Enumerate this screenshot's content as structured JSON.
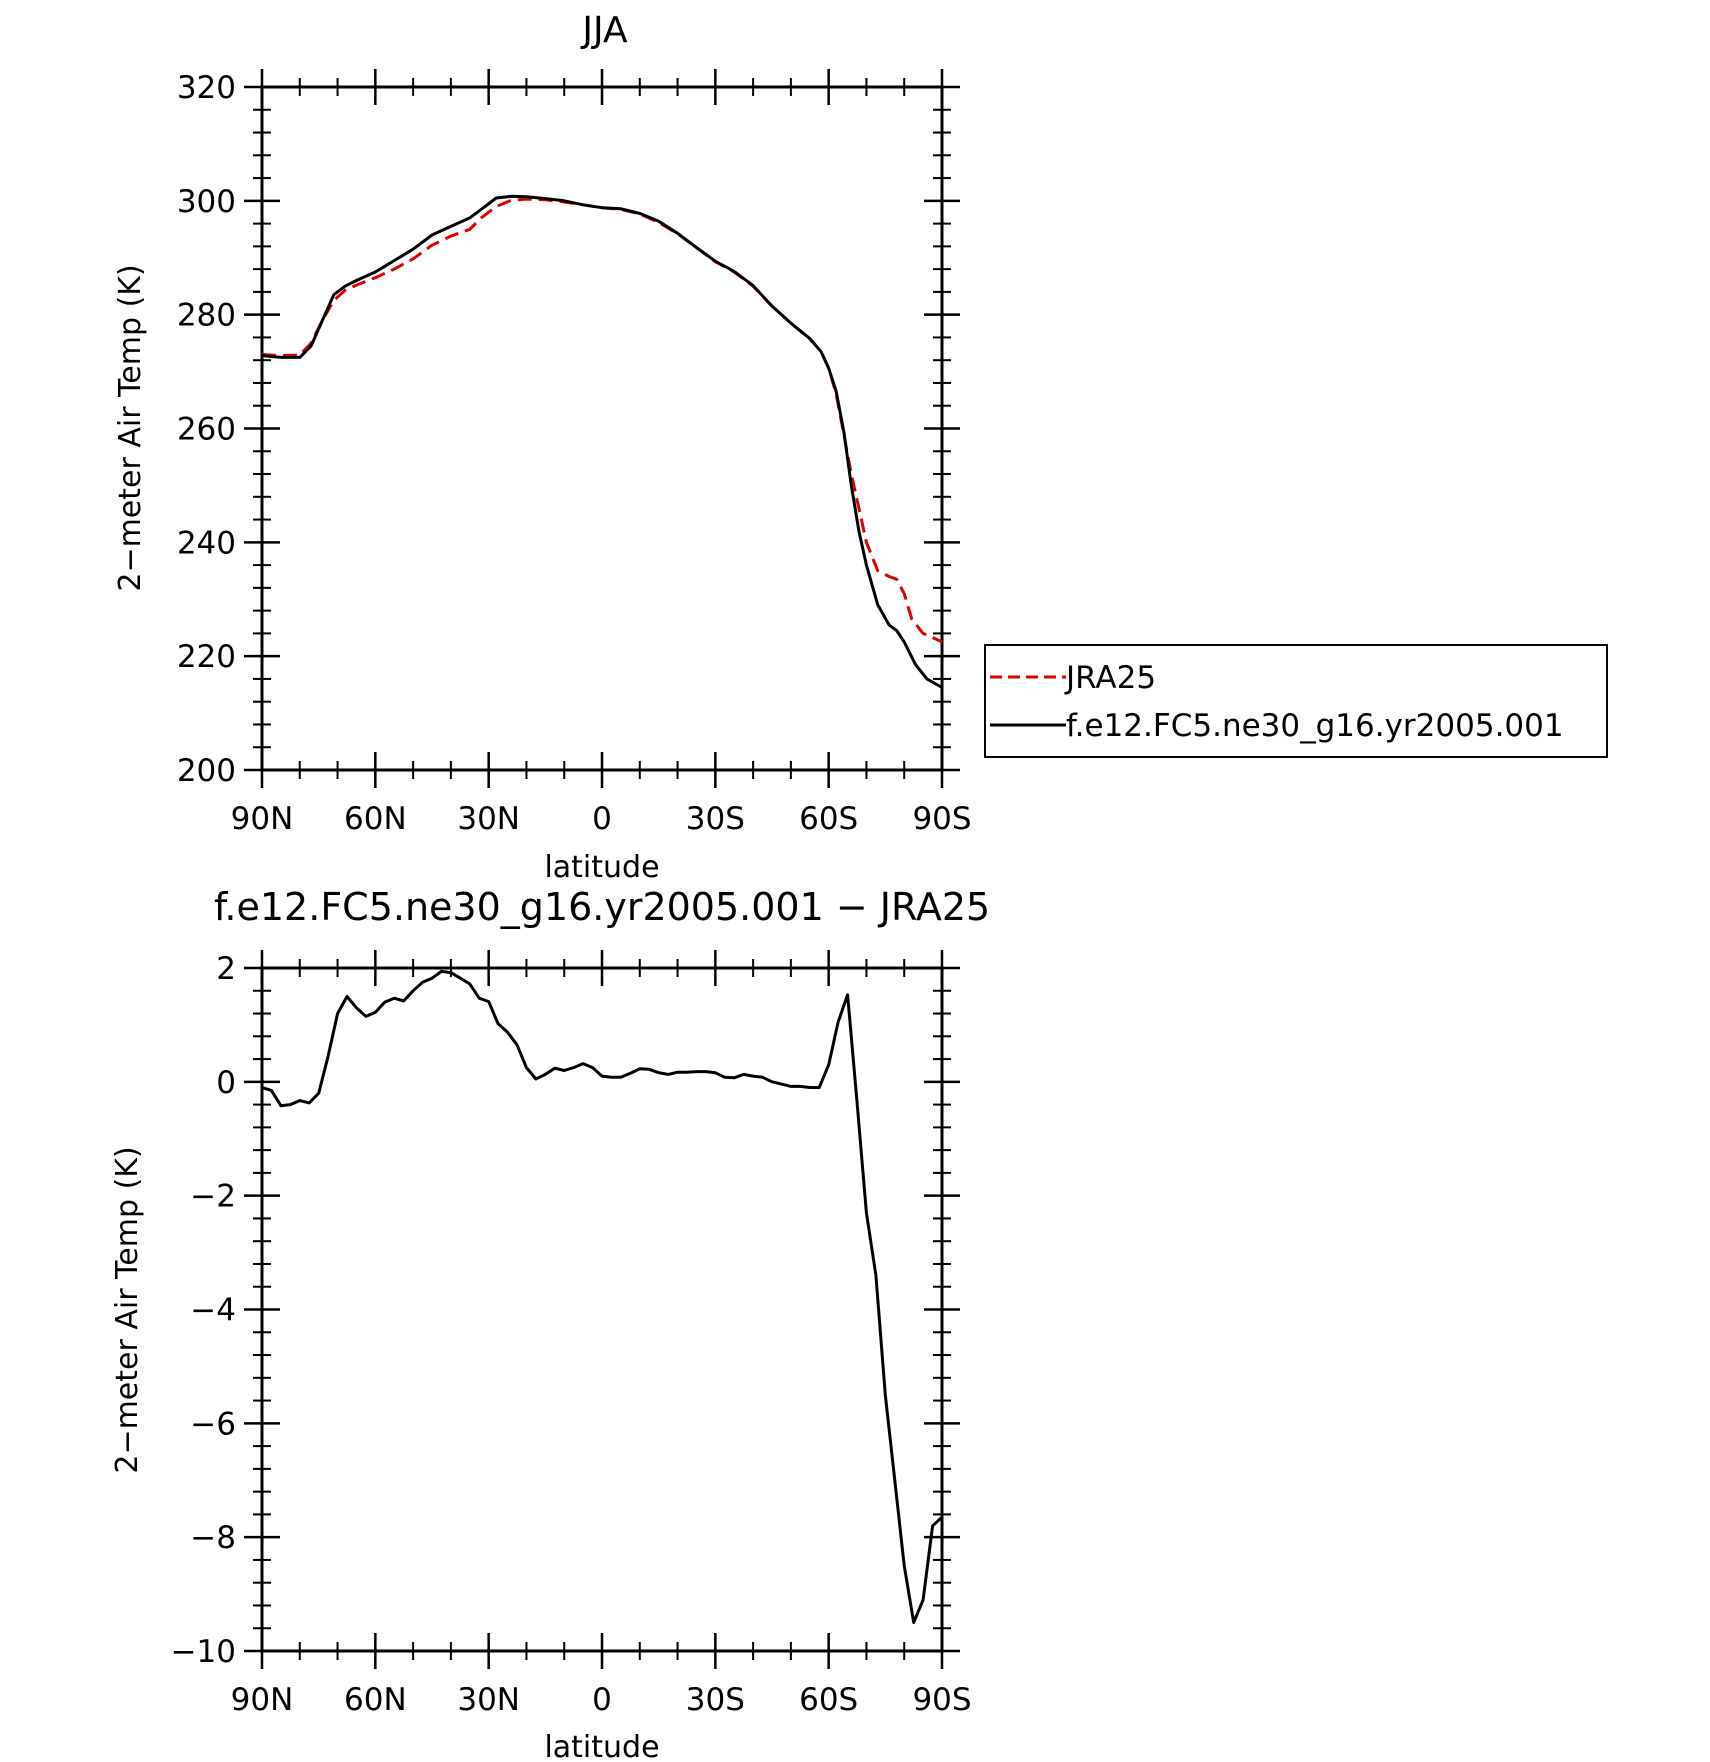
{
  "chart_data": [
    {
      "type": "line",
      "title": "JJA",
      "xlabel": "latitude",
      "ylabel": "2−meter Air Temp (K)",
      "xlim": [
        90,
        -90
      ],
      "ylim": [
        200,
        320
      ],
      "yticks": [
        200,
        220,
        240,
        260,
        280,
        300,
        320
      ],
      "xticks": [
        90,
        60,
        30,
        0,
        -30,
        -60,
        -90
      ],
      "xtick_labels": [
        "90N",
        "60N",
        "30N",
        "0",
        "30S",
        "60S",
        "90S"
      ],
      "ytick_labels": [
        "200",
        "220",
        "240",
        "260",
        "280",
        "300",
        "320"
      ],
      "legend": "right",
      "series": [
        {
          "name": "JRA25",
          "color": "#e00000",
          "dash": true,
          "points": [
            [
              90,
              273
            ],
            [
              85,
              272.8
            ],
            [
              80,
              272.9
            ],
            [
              77,
              275
            ],
            [
              74,
              279
            ],
            [
              71,
              282.5
            ],
            [
              68,
              284.3
            ],
            [
              65,
              285.2
            ],
            [
              60,
              286.5
            ],
            [
              55,
              288
            ],
            [
              50,
              289.8
            ],
            [
              45,
              292.2
            ],
            [
              40,
              293.8
            ],
            [
              35,
              295
            ],
            [
              32,
              297
            ],
            [
              28,
              299
            ],
            [
              24,
              300.1
            ],
            [
              20,
              300.3
            ],
            [
              15,
              300.2
            ],
            [
              10,
              299.8
            ],
            [
              5,
              299.3
            ],
            [
              0,
              298.8
            ],
            [
              -5,
              298.5
            ],
            [
              -10,
              297.7
            ],
            [
              -15,
              296.2
            ],
            [
              -20,
              294.2
            ],
            [
              -25,
              291.8
            ],
            [
              -30,
              289.3
            ],
            [
              -35,
              287.5
            ],
            [
              -40,
              285
            ],
            [
              -45,
              281.5
            ],
            [
              -50,
              278.5
            ],
            [
              -55,
              275.8
            ],
            [
              -58,
              273.5
            ],
            [
              -60,
              270.6
            ],
            [
              -62,
              266
            ],
            [
              -64,
              259
            ],
            [
              -66,
              252
            ],
            [
              -68,
              246
            ],
            [
              -70,
              240
            ],
            [
              -73,
              235
            ],
            [
              -76,
              234
            ],
            [
              -78,
              233.5
            ],
            [
              -80,
              231
            ],
            [
              -82,
              226.5
            ],
            [
              -85,
              224
            ],
            [
              -90,
              222.5
            ]
          ]
        },
        {
          "name": "f.e12.FC5.ne30_g16.yr2005.001",
          "color": "#000000",
          "dash": false,
          "points": [
            [
              90,
              272.8
            ],
            [
              85,
              272.5
            ],
            [
              80,
              272.5
            ],
            [
              77,
              274.5
            ],
            [
              74,
              279
            ],
            [
              71,
              283.5
            ],
            [
              68,
              285
            ],
            [
              65,
              286
            ],
            [
              60,
              287.5
            ],
            [
              55,
              289.5
            ],
            [
              50,
              291.5
            ],
            [
              45,
              294
            ],
            [
              40,
              295.5
            ],
            [
              35,
              297
            ],
            [
              32,
              298.5
            ],
            [
              28,
              300.5
            ],
            [
              24,
              300.8
            ],
            [
              20,
              300.7
            ],
            [
              15,
              300.4
            ],
            [
              10,
              300
            ],
            [
              5,
              299.3
            ],
            [
              0,
              298.8
            ],
            [
              -5,
              298.6
            ],
            [
              -10,
              297.8
            ],
            [
              -15,
              296.4
            ],
            [
              -20,
              294.3
            ],
            [
              -25,
              291.8
            ],
            [
              -30,
              289.4
            ],
            [
              -35,
              287.6
            ],
            [
              -40,
              285.1
            ],
            [
              -45,
              281.5
            ],
            [
              -50,
              278.5
            ],
            [
              -55,
              275.8
            ],
            [
              -58,
              273.5
            ],
            [
              -60,
              270.6
            ],
            [
              -62,
              266.5
            ],
            [
              -64,
              259.5
            ],
            [
              -66,
              250
            ],
            [
              -68,
              242
            ],
            [
              -70,
              236
            ],
            [
              -73,
              229
            ],
            [
              -76,
              225.5
            ],
            [
              -78,
              224.5
            ],
            [
              -80,
              222.5
            ],
            [
              -83,
              218.5
            ],
            [
              -86,
              216
            ],
            [
              -90,
              214.5
            ]
          ]
        }
      ]
    },
    {
      "type": "line",
      "title": "f.e12.FC5.ne30_g16.yr2005.001 − JRA25",
      "xlabel": "latitude",
      "ylabel": "2−meter Air Temp (K)",
      "xlim": [
        90,
        -90
      ],
      "ylim": [
        -10,
        2
      ],
      "yticks": [
        -10,
        -8,
        -6,
        -4,
        -2,
        0,
        2
      ],
      "xticks": [
        90,
        60,
        30,
        0,
        -30,
        -60,
        -90
      ],
      "xtick_labels": [
        "90N",
        "60N",
        "30N",
        "0",
        "30S",
        "60S",
        "90S"
      ],
      "ytick_labels": [
        "−10",
        "−8",
        "−6",
        "−4",
        "−2",
        "0",
        "2"
      ],
      "series": [
        {
          "color": "#000000",
          "dash": false,
          "points": [
            [
              90,
              -0.1
            ],
            [
              87.5,
              -0.15
            ],
            [
              85,
              -0.42
            ],
            [
              82.5,
              -0.4
            ],
            [
              80,
              -0.33
            ],
            [
              77.5,
              -0.37
            ],
            [
              75,
              -0.2
            ],
            [
              72.5,
              0.45
            ],
            [
              70,
              1.2
            ],
            [
              67.5,
              1.5
            ],
            [
              65,
              1.3
            ],
            [
              62.5,
              1.15
            ],
            [
              60,
              1.22
            ],
            [
              57.5,
              1.4
            ],
            [
              55,
              1.47
            ],
            [
              52.5,
              1.42
            ],
            [
              50,
              1.6
            ],
            [
              47.5,
              1.75
            ],
            [
              45,
              1.82
            ],
            [
              42.5,
              1.94
            ],
            [
              40,
              1.92
            ],
            [
              37.5,
              1.82
            ],
            [
              35,
              1.72
            ],
            [
              32.5,
              1.47
            ],
            [
              30,
              1.41
            ],
            [
              27.5,
              1.02
            ],
            [
              25,
              0.87
            ],
            [
              22.5,
              0.65
            ],
            [
              20,
              0.25
            ],
            [
              17.5,
              0.05
            ],
            [
              15,
              0.13
            ],
            [
              12.5,
              0.24
            ],
            [
              10,
              0.2
            ],
            [
              7.5,
              0.25
            ],
            [
              5,
              0.32
            ],
            [
              2.5,
              0.25
            ],
            [
              0,
              0.1
            ],
            [
              -2.5,
              0.08
            ],
            [
              -5,
              0.08
            ],
            [
              -7.5,
              0.15
            ],
            [
              -10,
              0.23
            ],
            [
              -12.5,
              0.22
            ],
            [
              -15,
              0.16
            ],
            [
              -17.5,
              0.13
            ],
            [
              -20,
              0.17
            ],
            [
              -22.5,
              0.17
            ],
            [
              -25,
              0.18
            ],
            [
              -27.5,
              0.18
            ],
            [
              -30,
              0.16
            ],
            [
              -32.5,
              0.08
            ],
            [
              -35,
              0.07
            ],
            [
              -37.5,
              0.13
            ],
            [
              -40,
              0.1
            ],
            [
              -42.5,
              0.08
            ],
            [
              -45,
              0.0
            ],
            [
              -47.5,
              -0.04
            ],
            [
              -50,
              -0.08
            ],
            [
              -52.5,
              -0.08
            ],
            [
              -55,
              -0.1
            ],
            [
              -57.5,
              -0.1
            ],
            [
              -60,
              0.3
            ],
            [
              -62.5,
              1.05
            ],
            [
              -65,
              1.53
            ],
            [
              -67.5,
              -0.35
            ],
            [
              -70,
              -2.3
            ],
            [
              -72.5,
              -3.4
            ],
            [
              -75,
              -5.5
            ],
            [
              -77.5,
              -7.0
            ],
            [
              -80,
              -8.5
            ],
            [
              -82.5,
              -9.5
            ],
            [
              -85,
              -9.1
            ],
            [
              -87.5,
              -7.8
            ],
            [
              -90,
              -7.65
            ]
          ]
        }
      ]
    }
  ]
}
